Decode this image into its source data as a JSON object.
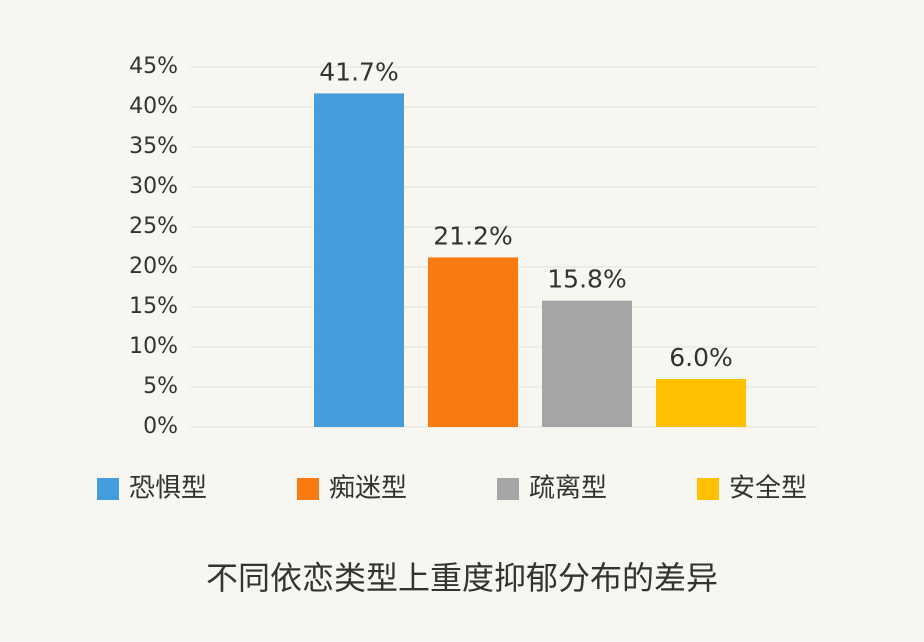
{
  "chart_data": {
    "type": "bar",
    "title": "不同依恋类型上重度抑郁分布的差异",
    "categories": [
      null
    ],
    "series": [
      {
        "name": "恐惧型",
        "color": "#469ddd",
        "values": [
          41.7
        ],
        "value_labels": [
          "41.7%"
        ]
      },
      {
        "name": "痴迷型",
        "color": "#fa7a12",
        "values": [
          21.2
        ],
        "value_labels": [
          "21.2%"
        ]
      },
      {
        "name": "疏离型",
        "color": "#a5a5a5",
        "values": [
          15.8
        ],
        "value_labels": [
          "15.8%"
        ]
      },
      {
        "name": "安全型",
        "color": "#ffc000",
        "values": [
          6.0
        ],
        "value_labels": [
          "6.0%"
        ]
      }
    ],
    "ylim": [
      0,
      45
    ],
    "yticks": [
      {
        "value": 0,
        "label": "0%"
      },
      {
        "value": 5,
        "label": "5%"
      },
      {
        "value": 10,
        "label": "10%"
      },
      {
        "value": 15,
        "label": "15%"
      },
      {
        "value": 20,
        "label": "20%"
      },
      {
        "value": 25,
        "label": "25%"
      },
      {
        "value": 30,
        "label": "30%"
      },
      {
        "value": 35,
        "label": "35%"
      },
      {
        "value": 40,
        "label": "40%"
      },
      {
        "value": 45,
        "label": "45%"
      }
    ],
    "grid": true,
    "legend": "bottom"
  }
}
